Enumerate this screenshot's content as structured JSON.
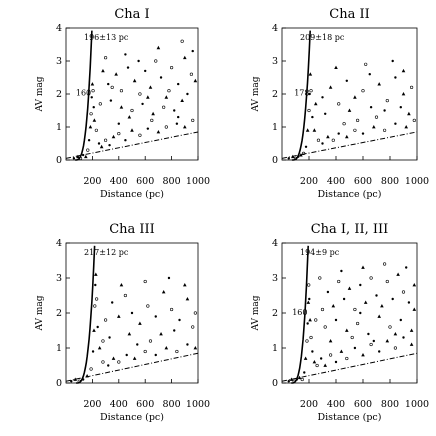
{
  "chart_data": [
    {
      "type": "scatter",
      "title": "Cha I",
      "xlabel": "Distance (pc)",
      "ylabel": "A_V mag",
      "xlim": [
        0,
        1000
      ],
      "ylim": [
        0,
        4
      ],
      "xticks": [
        "200",
        "400",
        "600",
        "800",
        "1000"
      ],
      "yticks": [
        "0",
        "1",
        "2",
        "3",
        "4"
      ],
      "distance_label": "196±13 pc",
      "distance": 196,
      "step_label": "160",
      "series": [
        {
          "points": [
            [
              60,
              0.05
            ],
            [
              90,
              0.1
            ],
            [
              110,
              0.05
            ],
            [
              130,
              0.15
            ],
            [
              150,
              0.1
            ],
            [
              165,
              0.3
            ],
            [
              175,
              0.6
            ],
            [
              185,
              1.0
            ],
            [
              190,
              1.4
            ],
            [
              195,
              1.9
            ],
            [
              200,
              2.3
            ],
            [
              205,
              2.1
            ],
            [
              210,
              1.6
            ],
            [
              215,
              1.2
            ],
            [
              230,
              0.9
            ],
            [
              250,
              0.5
            ],
            [
              270,
              0.4
            ],
            [
              300,
              0.6
            ],
            [
              330,
              0.45
            ],
            [
              360,
              0.7
            ],
            [
              400,
              0.8
            ],
            [
              450,
              0.6
            ],
            [
              500,
              0.9
            ],
            [
              560,
              0.75
            ],
            [
              620,
              0.95
            ],
            [
              700,
              0.85
            ],
            [
              760,
              1.0
            ],
            [
              840,
              1.1
            ],
            [
              900,
              1.0
            ],
            [
              960,
              1.2
            ],
            [
              320,
              2.3
            ],
            [
              380,
              2.6
            ],
            [
              420,
              2.1
            ],
            [
              470,
              2.8
            ],
            [
              520,
              2.4
            ],
            [
              560,
              2.0
            ],
            [
              600,
              2.7
            ],
            [
              640,
              2.2
            ],
            [
              680,
              3.0
            ],
            [
              720,
              2.5
            ],
            [
              760,
              1.9
            ],
            [
              800,
              2.8
            ],
            [
              850,
              2.3
            ],
            [
              900,
              3.1
            ],
            [
              950,
              2.6
            ],
            [
              340,
              1.8
            ],
            [
              420,
              1.6
            ],
            [
              500,
              1.5
            ],
            [
              580,
              1.7
            ],
            [
              660,
              1.4
            ],
            [
              740,
              1.6
            ],
            [
              820,
              1.5
            ],
            [
              880,
              1.8
            ],
            [
              300,
              3.1
            ],
            [
              450,
              3.2
            ],
            [
              700,
              3.4
            ],
            [
              880,
              3.6
            ],
            [
              960,
              3.3
            ],
            [
              280,
              2.7
            ],
            [
              350,
              2.2
            ],
            [
              550,
              3.0
            ],
            [
              620,
              1.9
            ],
            [
              780,
              2.1
            ],
            [
              920,
              2.0
            ],
            [
              980,
              2.4
            ],
            [
              260,
              1.7
            ],
            [
              400,
              1.1
            ],
            [
              480,
              1.3
            ],
            [
              650,
              1.2
            ],
            [
              850,
              1.3
            ]
          ]
        }
      ]
    },
    {
      "type": "scatter",
      "title": "Cha II",
      "xlabel": "Distance (pc)",
      "ylabel": "A_V mag",
      "xlim": [
        0,
        1000
      ],
      "ylim": [
        0,
        4
      ],
      "xticks": [
        "200",
        "400",
        "600",
        "800",
        "1000"
      ],
      "yticks": [
        "0",
        "1",
        "2",
        "3",
        "4"
      ],
      "distance_label": "209±18 pc",
      "distance": 209,
      "step_label": "178",
      "series": [
        {
          "points": [
            [
              50,
              0.05
            ],
            [
              80,
              0.1
            ],
            [
              100,
              0.05
            ],
            [
              120,
              0.1
            ],
            [
              140,
              0.15
            ],
            [
              160,
              0.2
            ],
            [
              178,
              0.4
            ],
            [
              190,
              0.9
            ],
            [
              200,
              1.5
            ],
            [
              205,
              2.0
            ],
            [
              210,
              2.6
            ],
            [
              215,
              2.1
            ],
            [
              225,
              1.3
            ],
            [
              240,
              0.9
            ],
            [
              270,
              0.6
            ],
            [
              300,
              0.5
            ],
            [
              340,
              0.7
            ],
            [
              380,
              0.6
            ],
            [
              420,
              0.8
            ],
            [
              480,
              0.7
            ],
            [
              540,
              0.9
            ],
            [
              600,
              0.8
            ],
            [
              680,
              1.0
            ],
            [
              760,
              0.9
            ],
            [
              840,
              1.1
            ],
            [
              920,
              1.0
            ],
            [
              980,
              1.2
            ],
            [
              300,
              1.9
            ],
            [
              360,
              2.2
            ],
            [
              420,
              1.7
            ],
            [
              480,
              2.4
            ],
            [
              540,
              1.9
            ],
            [
              600,
              2.1
            ],
            [
              660,
              1.6
            ],
            [
              720,
              2.3
            ],
            [
              780,
              1.8
            ],
            [
              840,
              2.5
            ],
            [
              900,
              2.0
            ],
            [
              960,
              2.2
            ],
            [
              320,
              1.4
            ],
            [
              500,
              1.5
            ],
            [
              700,
              1.3
            ],
            [
              880,
              1.6
            ],
            [
              400,
              2.8
            ],
            [
              620,
              2.9
            ],
            [
              820,
              3.0
            ],
            [
              250,
              1.7
            ],
            [
              560,
              1.2
            ],
            [
              760,
              1.5
            ],
            [
              940,
              1.4
            ],
            [
              460,
              1.1
            ],
            [
              650,
              2.6
            ],
            [
              900,
              2.7
            ]
          ]
        }
      ]
    },
    {
      "type": "scatter",
      "title": "Cha III",
      "xlabel": "Distance (pc)",
      "ylabel": "A_V mag",
      "xlim": [
        0,
        1000
      ],
      "ylim": [
        0,
        4
      ],
      "xticks": [
        "200",
        "400",
        "600",
        "800",
        "1000"
      ],
      "yticks": [
        "0",
        "1",
        "2",
        "3",
        "4"
      ],
      "distance_label": "217±12 pc",
      "distance": 217,
      "step_label": "",
      "series": [
        {
          "points": [
            [
              40,
              0.05
            ],
            [
              70,
              0.1
            ],
            [
              100,
              0.05
            ],
            [
              130,
              0.1
            ],
            [
              160,
              0.2
            ],
            [
              190,
              0.4
            ],
            [
              205,
              0.9
            ],
            [
              212,
              1.5
            ],
            [
              218,
              2.2
            ],
            [
              222,
              2.8
            ],
            [
              226,
              3.1
            ],
            [
              232,
              2.4
            ],
            [
              240,
              1.6
            ],
            [
              255,
              1.0
            ],
            [
              280,
              0.6
            ],
            [
              320,
              0.5
            ],
            [
              360,
              0.7
            ],
            [
              400,
              0.6
            ],
            [
              460,
              0.8
            ],
            [
              520,
              0.7
            ],
            [
              600,
              0.9
            ],
            [
              680,
              0.8
            ],
            [
              760,
              1.0
            ],
            [
              840,
              0.9
            ],
            [
              920,
              1.1
            ],
            [
              980,
              1.0
            ],
            [
              300,
              1.8
            ],
            [
              350,
              2.3
            ],
            [
              400,
              1.9
            ],
            [
              450,
              2.5
            ],
            [
              500,
              2.0
            ],
            [
              560,
              1.7
            ],
            [
              620,
              2.2
            ],
            [
              680,
              1.9
            ],
            [
              740,
              2.6
            ],
            [
              800,
              2.1
            ],
            [
              860,
              1.8
            ],
            [
              920,
              2.4
            ],
            [
              980,
              2.0
            ],
            [
              330,
              1.3
            ],
            [
              480,
              1.4
            ],
            [
              640,
              1.2
            ],
            [
              820,
              1.5
            ],
            [
              420,
              2.8
            ],
            [
              600,
              2.9
            ],
            [
              780,
              3.0
            ],
            [
              900,
              2.8
            ],
            [
              280,
              1.2
            ],
            [
              540,
              1.1
            ],
            [
              720,
              1.4
            ],
            [
              960,
              1.6
            ]
          ]
        }
      ]
    },
    {
      "type": "scatter",
      "title": "Cha I, II, III",
      "xlabel": "Distance (pc)",
      "ylabel": "A_V mag",
      "xlim": [
        0,
        1000
      ],
      "ylim": [
        0,
        4
      ],
      "xticks": [
        "200",
        "400",
        "600",
        "800",
        "1000"
      ],
      "yticks": [
        "0",
        "1",
        "2",
        "3",
        "4"
      ],
      "distance_label": "194±9 pc",
      "distance": 194,
      "step_label": "160",
      "series": [
        {
          "points": [
            [
              50,
              0.05
            ],
            [
              70,
              0.1
            ],
            [
              90,
              0.05
            ],
            [
              110,
              0.1
            ],
            [
              130,
              0.15
            ],
            [
              150,
              0.1
            ],
            [
              165,
              0.3
            ],
            [
              175,
              0.7
            ],
            [
              185,
              1.2
            ],
            [
              190,
              1.7
            ],
            [
              195,
              2.3
            ],
            [
              198,
              2.8
            ],
            [
              202,
              2.4
            ],
            [
              208,
              1.8
            ],
            [
              215,
              1.3
            ],
            [
              225,
              0.9
            ],
            [
              240,
              0.6
            ],
            [
              260,
              0.5
            ],
            [
              290,
              0.7
            ],
            [
              320,
              0.5
            ],
            [
              360,
              0.8
            ],
            [
              400,
              0.6
            ],
            [
              440,
              0.9
            ],
            [
              480,
              0.7
            ],
            [
              540,
              1.0
            ],
            [
              600,
              0.8
            ],
            [
              660,
              1.1
            ],
            [
              720,
              0.9
            ],
            [
              780,
              1.2
            ],
            [
              840,
              1.0
            ],
            [
              900,
              1.3
            ],
            [
              960,
              1.1
            ],
            [
              300,
              2.1
            ],
            [
              340,
              2.6
            ],
            [
              380,
              2.2
            ],
            [
              420,
              2.9
            ],
            [
              460,
              2.4
            ],
            [
              500,
              2.7
            ],
            [
              540,
              2.1
            ],
            [
              580,
              2.8
            ],
            [
              620,
              2.3
            ],
            [
              660,
              3.0
            ],
            [
              700,
              2.5
            ],
            [
              740,
              2.2
            ],
            [
              780,
              2.9
            ],
            [
              820,
              2.4
            ],
            [
              860,
              3.1
            ],
            [
              900,
              2.6
            ],
            [
              940,
              2.3
            ],
            [
              980,
              2.8
            ],
            [
              320,
              1.6
            ],
            [
              400,
              1.8
            ],
            [
              480,
              1.5
            ],
            [
              560,
              1.7
            ],
            [
              640,
              1.4
            ],
            [
              720,
              1.9
            ],
            [
              800,
              1.6
            ],
            [
              880,
              1.8
            ],
            [
              960,
              1.5
            ],
            [
              280,
              3.0
            ],
            [
              440,
              3.2
            ],
            [
              600,
              3.3
            ],
            [
              760,
              3.4
            ],
            [
              920,
              3.3
            ],
            [
              360,
              1.2
            ],
            [
              520,
              1.3
            ],
            [
              680,
              1.2
            ],
            [
              840,
              1.4
            ],
            [
              250,
              1.8
            ],
            [
              580,
              2.0
            ],
            [
              980,
              2.1
            ]
          ]
        }
      ]
    }
  ]
}
